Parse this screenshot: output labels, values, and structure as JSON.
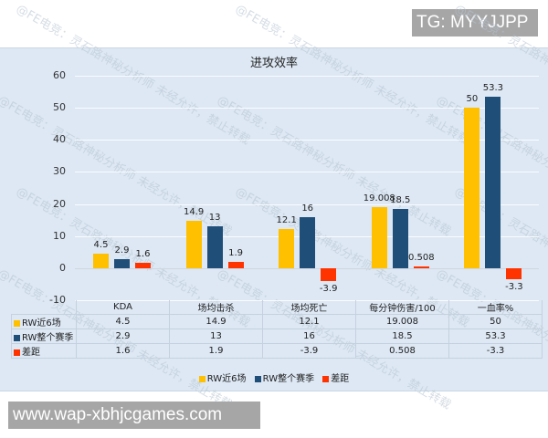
{
  "badges": {
    "top_right": "TG: MYYJJPP",
    "bottom_left": "www.wap-xbhjcgames.com"
  },
  "watermark": "@FE电竞：灵石路神秘分析师 未经允许，禁止转载",
  "colors": {
    "rw_recent": "#ffc000",
    "rw_season": "#1f4e79",
    "diff": "#ff3300",
    "panel_bg": "#dde8f4"
  },
  "chart_data": {
    "type": "bar",
    "title": "进攻效率",
    "categories": [
      "KDA",
      "场均击杀",
      "场均死亡",
      "每分钟伤害/100",
      "一血率%"
    ],
    "series": [
      {
        "name": "RW近6场",
        "color": "#ffc000",
        "values": [
          4.5,
          14.9,
          12.1,
          19.008,
          50
        ]
      },
      {
        "name": "RW整个赛季",
        "color": "#1f4e79",
        "values": [
          2.9,
          13,
          16,
          18.5,
          53.3
        ]
      },
      {
        "name": "差距",
        "color": "#ff3300",
        "values": [
          1.6,
          1.9,
          -3.9,
          0.508,
          -3.3
        ]
      }
    ],
    "value_labels": [
      [
        "4.5",
        "14.9",
        "12.1",
        "19.008",
        "50"
      ],
      [
        "2.9",
        "13",
        "16",
        "18.5",
        "53.3"
      ],
      [
        "1.6",
        "1.9",
        "-3.9",
        "0.508",
        "-3.3"
      ]
    ],
    "xlabel": "",
    "ylabel": "",
    "ylim": [
      -10,
      60
    ],
    "yticks": [
      "60",
      "50",
      "40",
      "30",
      "20",
      "10",
      "0",
      "-10"
    ],
    "grid": true,
    "legend_position": "bottom",
    "data_table": true
  },
  "table": {
    "headers": [
      "KDA",
      "场均击杀",
      "场均死亡",
      "每分钟伤害/100",
      "一血率%"
    ],
    "rows": [
      {
        "label": "RW近6场",
        "cells": [
          "4.5",
          "14.9",
          "12.1",
          "19.008",
          "50"
        ]
      },
      {
        "label": "RW整个赛季",
        "cells": [
          "2.9",
          "13",
          "16",
          "18.5",
          "53.3"
        ]
      },
      {
        "label": "差距",
        "cells": [
          "1.6",
          "1.9",
          "-3.9",
          "0.508",
          "-3.3"
        ]
      }
    ]
  },
  "legend": [
    "RW近6场",
    "RW整个赛季",
    "差距"
  ]
}
